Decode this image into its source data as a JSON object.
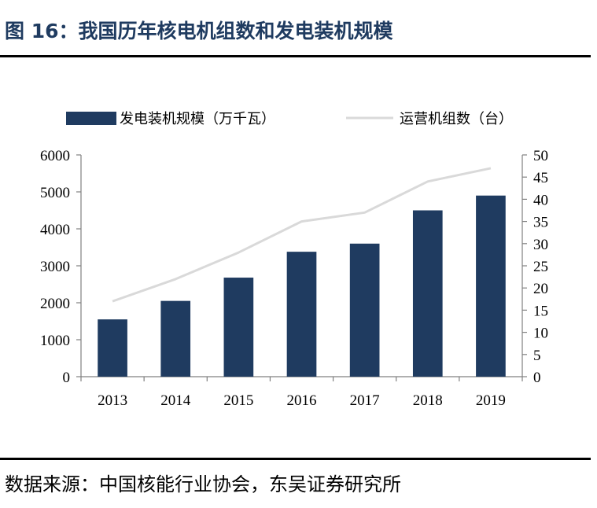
{
  "figure": {
    "title": "图 16：我国历年核电机组数和发电装机规模",
    "source": "数据来源：中国核能行业协会，东吴证券研究所"
  },
  "colors": {
    "bar": "#1f3b60",
    "line": "#d9d9d9",
    "title": "#1f3b60"
  },
  "chart_data": {
    "type": "bar",
    "categories": [
      "2013",
      "2014",
      "2015",
      "2016",
      "2017",
      "2018",
      "2019"
    ],
    "series": [
      {
        "name": "发电装机规模（万千瓦）",
        "type": "bar",
        "axis": "left",
        "values": [
          1550,
          2050,
          2680,
          3380,
          3600,
          4500,
          4900
        ]
      },
      {
        "name": "运营机组数（台）",
        "type": "line",
        "axis": "right",
        "values": [
          17,
          22,
          28,
          35,
          37,
          44,
          47
        ]
      }
    ],
    "y_left": {
      "min": 0,
      "max": 6000,
      "ticks": [
        "0",
        "1000",
        "2000",
        "3000",
        "4000",
        "5000",
        "6000"
      ]
    },
    "y_right": {
      "min": 0,
      "max": 50,
      "ticks": [
        "0",
        "5",
        "10",
        "15",
        "20",
        "25",
        "30",
        "35",
        "40",
        "45",
        "50"
      ]
    },
    "legend_position": "top",
    "grid": false
  }
}
